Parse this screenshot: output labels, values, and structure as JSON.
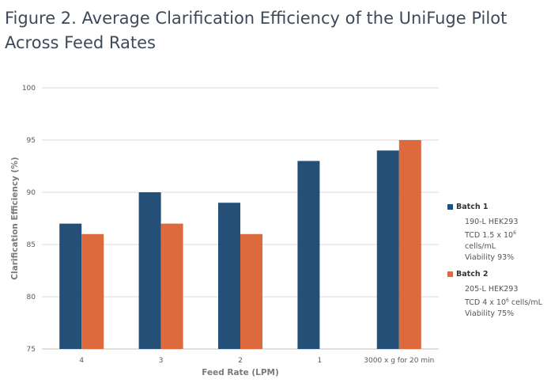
{
  "title_line1": "Figure 2. Average Clarification Efficiency of the UniFuge Pilot",
  "title_line2": "Across Feed Rates",
  "chart_data": {
    "type": "bar",
    "categories": [
      "4",
      "3",
      "2",
      "1",
      "3000 x g for 20 min"
    ],
    "series": [
      {
        "name": "Batch 1",
        "color": "#245077",
        "values": [
          87,
          90,
          89,
          93,
          94
        ]
      },
      {
        "name": "Batch 2",
        "color": "#dc6a3c",
        "values": [
          86,
          87,
          86,
          null,
          95
        ]
      }
    ],
    "xlabel": "Feed Rate (LPM)",
    "ylabel": "Clarification Efficiency (%)",
    "ylim": [
      75,
      100
    ],
    "yticks": [
      "75",
      "80",
      "85",
      "90",
      "95",
      "100"
    ],
    "grid": true,
    "legend_position": "right"
  },
  "legend": [
    {
      "name": "Batch 1",
      "color": "#245077",
      "line1": "190-L HEK293",
      "line2_pre": "TCD 1.5 x 10",
      "line2_sup": "6",
      "line2_post": " cells/mL",
      "line3": "Viability 93%"
    },
    {
      "name": "Batch 2",
      "color": "#dc6a3c",
      "line1": "205-L HEK293",
      "line2_pre": "TCD 4 x 10",
      "line2_sup": "6",
      "line2_post": " cells/mL",
      "line3": "Viability 75%"
    }
  ]
}
